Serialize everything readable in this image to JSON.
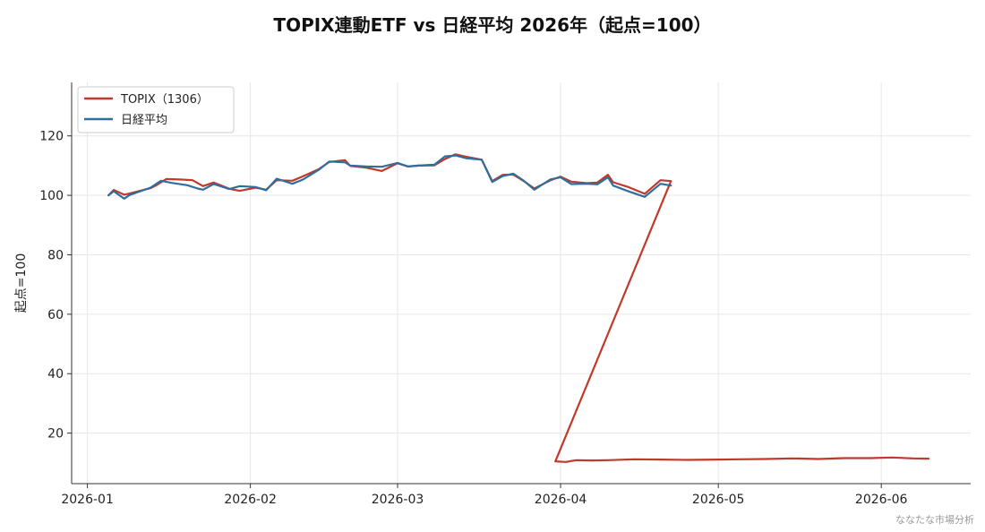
{
  "watermark": "ななたな市場分析",
  "chart_data": {
    "type": "line",
    "title": "TOPIX連動ETF vs 日経平均 2026年（起点=100）",
    "xlabel": "",
    "ylabel": "起点=100",
    "x_start": "2026-01-05",
    "x_end": "2026-06-10",
    "xlim": [
      "2025-12-29",
      "2026-06-18"
    ],
    "ylim": [
      3,
      138
    ],
    "yticks": [
      20,
      40,
      60,
      80,
      100,
      120
    ],
    "xticks": [
      {
        "date": "2026-01-01",
        "label": "2026-01"
      },
      {
        "date": "2026-02-01",
        "label": "2026-02"
      },
      {
        "date": "2026-03-01",
        "label": "2026-03"
      },
      {
        "date": "2026-04-01",
        "label": "2026-04"
      },
      {
        "date": "2026-05-01",
        "label": "2026-05"
      },
      {
        "date": "2026-06-01",
        "label": "2026-06"
      }
    ],
    "grid": true,
    "legend_position": "top-left",
    "series": [
      {
        "name": "TOPIX（1306）",
        "color": "#c0392b",
        "points": [
          [
            "2026-01-05",
            100
          ],
          [
            "2026-01-06",
            101.8
          ],
          [
            "2026-01-08",
            100.2
          ],
          [
            "2026-01-09",
            100.6
          ],
          [
            "2026-01-13",
            102.4
          ],
          [
            "2026-01-14",
            103.3
          ],
          [
            "2026-01-16",
            105.5
          ],
          [
            "2026-01-19",
            105.3
          ],
          [
            "2026-01-21",
            105.1
          ],
          [
            "2026-01-23",
            103.1
          ],
          [
            "2026-01-25",
            104.3
          ],
          [
            "2026-01-28",
            102.2
          ],
          [
            "2026-01-30",
            101.5
          ],
          [
            "2026-02-02",
            102.6
          ],
          [
            "2026-02-04",
            101.9
          ],
          [
            "2026-02-06",
            105.1
          ],
          [
            "2026-02-09",
            104.9
          ],
          [
            "2026-02-11",
            106.4
          ],
          [
            "2026-02-14",
            108.8
          ],
          [
            "2026-02-16",
            111.2
          ],
          [
            "2026-02-19",
            111.8
          ],
          [
            "2026-02-20",
            109.9
          ],
          [
            "2026-02-23",
            109.3
          ],
          [
            "2026-02-26",
            108.2
          ],
          [
            "2026-03-01",
            110.8
          ],
          [
            "2026-03-03",
            109.7
          ],
          [
            "2026-03-05",
            110
          ],
          [
            "2026-03-08",
            110.1
          ],
          [
            "2026-03-10",
            112.2
          ],
          [
            "2026-03-12",
            113.8
          ],
          [
            "2026-03-14",
            113
          ],
          [
            "2026-03-17",
            112
          ],
          [
            "2026-03-19",
            104.8
          ],
          [
            "2026-03-21",
            106.9
          ],
          [
            "2026-03-23",
            107
          ],
          [
            "2026-03-25",
            104.8
          ],
          [
            "2026-03-27",
            102.3
          ],
          [
            "2026-03-30",
            105
          ],
          [
            "2026-04-01",
            106.3
          ],
          [
            "2026-04-03",
            104.6
          ],
          [
            "2026-04-06",
            104.1
          ],
          [
            "2026-04-08",
            104.3
          ],
          [
            "2026-04-10",
            106.9
          ],
          [
            "2026-04-11",
            104.4
          ],
          [
            "2026-04-14",
            102.7
          ],
          [
            "2026-04-17",
            100.5
          ],
          [
            "2026-04-20",
            105.1
          ],
          [
            "2026-04-22",
            104.8
          ],
          [
            "2026-03-31",
            10.5
          ],
          [
            "2026-04-02",
            10.3
          ],
          [
            "2026-04-04",
            10.9
          ],
          [
            "2026-04-07",
            10.8
          ],
          [
            "2026-04-10",
            10.9
          ],
          [
            "2026-04-15",
            11.2
          ],
          [
            "2026-04-20",
            11.1
          ],
          [
            "2026-04-25",
            11
          ],
          [
            "2026-05-01",
            11.1
          ],
          [
            "2026-05-05",
            11.2
          ],
          [
            "2026-05-10",
            11.3
          ],
          [
            "2026-05-15",
            11.5
          ],
          [
            "2026-05-20",
            11.3
          ],
          [
            "2026-05-25",
            11.6
          ],
          [
            "2026-05-30",
            11.6
          ],
          [
            "2026-06-03",
            11.8
          ],
          [
            "2026-06-07",
            11.5
          ],
          [
            "2026-06-10",
            11.4
          ]
        ]
      },
      {
        "name": "日経平均",
        "color": "#2e6f9e",
        "points": [
          [
            "2026-01-05",
            100
          ],
          [
            "2026-01-06",
            101.4
          ],
          [
            "2026-01-08",
            98.9
          ],
          [
            "2026-01-09",
            100.1
          ],
          [
            "2026-01-13",
            102.6
          ],
          [
            "2026-01-15",
            104.9
          ],
          [
            "2026-01-17",
            104.2
          ],
          [
            "2026-01-20",
            103.4
          ],
          [
            "2026-01-22",
            102.3
          ],
          [
            "2026-01-23",
            101.9
          ],
          [
            "2026-01-25",
            103.8
          ],
          [
            "2026-01-28",
            102.1
          ],
          [
            "2026-01-30",
            103.1
          ],
          [
            "2026-02-02",
            102.8
          ],
          [
            "2026-02-04",
            101.7
          ],
          [
            "2026-02-06",
            105.6
          ],
          [
            "2026-02-09",
            103.9
          ],
          [
            "2026-02-11",
            105.3
          ],
          [
            "2026-02-14",
            108.6
          ],
          [
            "2026-02-16",
            111.4
          ],
          [
            "2026-02-19",
            111.1
          ],
          [
            "2026-02-20",
            110
          ],
          [
            "2026-02-23",
            109.7
          ],
          [
            "2026-02-26",
            109.6
          ],
          [
            "2026-03-01",
            110.9
          ],
          [
            "2026-03-03",
            109.7
          ],
          [
            "2026-03-05",
            110
          ],
          [
            "2026-03-08",
            110.3
          ],
          [
            "2026-03-10",
            113.1
          ],
          [
            "2026-03-12",
            113.4
          ],
          [
            "2026-03-14",
            112.5
          ],
          [
            "2026-03-17",
            112
          ],
          [
            "2026-03-19",
            104.5
          ],
          [
            "2026-03-21",
            106.5
          ],
          [
            "2026-03-23",
            107.3
          ],
          [
            "2026-03-25",
            104.9
          ],
          [
            "2026-03-27",
            101.9
          ],
          [
            "2026-03-30",
            105.3
          ],
          [
            "2026-04-01",
            106.1
          ],
          [
            "2026-04-03",
            103.8
          ],
          [
            "2026-04-06",
            103.9
          ],
          [
            "2026-04-08",
            103.7
          ],
          [
            "2026-04-10",
            106.1
          ],
          [
            "2026-04-11",
            103.3
          ],
          [
            "2026-04-14",
            101.3
          ],
          [
            "2026-04-17",
            99.5
          ],
          [
            "2026-04-20",
            103.9
          ],
          [
            "2026-04-22",
            103.3
          ]
        ]
      }
    ]
  }
}
